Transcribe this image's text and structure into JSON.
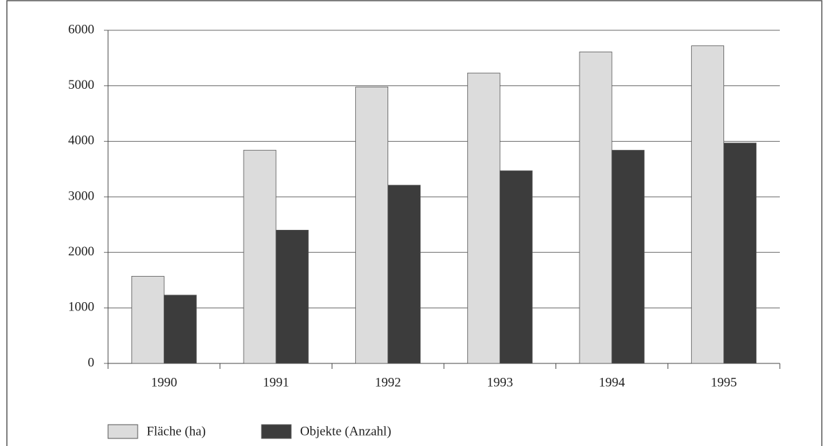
{
  "chart_data": {
    "type": "bar",
    "categories": [
      "1990",
      "1991",
      "1992",
      "1993",
      "1994",
      "1995"
    ],
    "series": [
      {
        "name": "Fläche (ha)",
        "color": "#dcdcdc",
        "values": [
          1570,
          3840,
          4980,
          5230,
          5610,
          5720
        ]
      },
      {
        "name": "Objekte (Anzahl)",
        "color": "#3c3c3c",
        "values": [
          1230,
          2400,
          3210,
          3470,
          3840,
          3970
        ]
      }
    ],
    "ylim": [
      0,
      6000
    ],
    "yticks": [
      0,
      1000,
      2000,
      3000,
      4000,
      5000,
      6000
    ],
    "grid": true,
    "legend": "bottom"
  }
}
